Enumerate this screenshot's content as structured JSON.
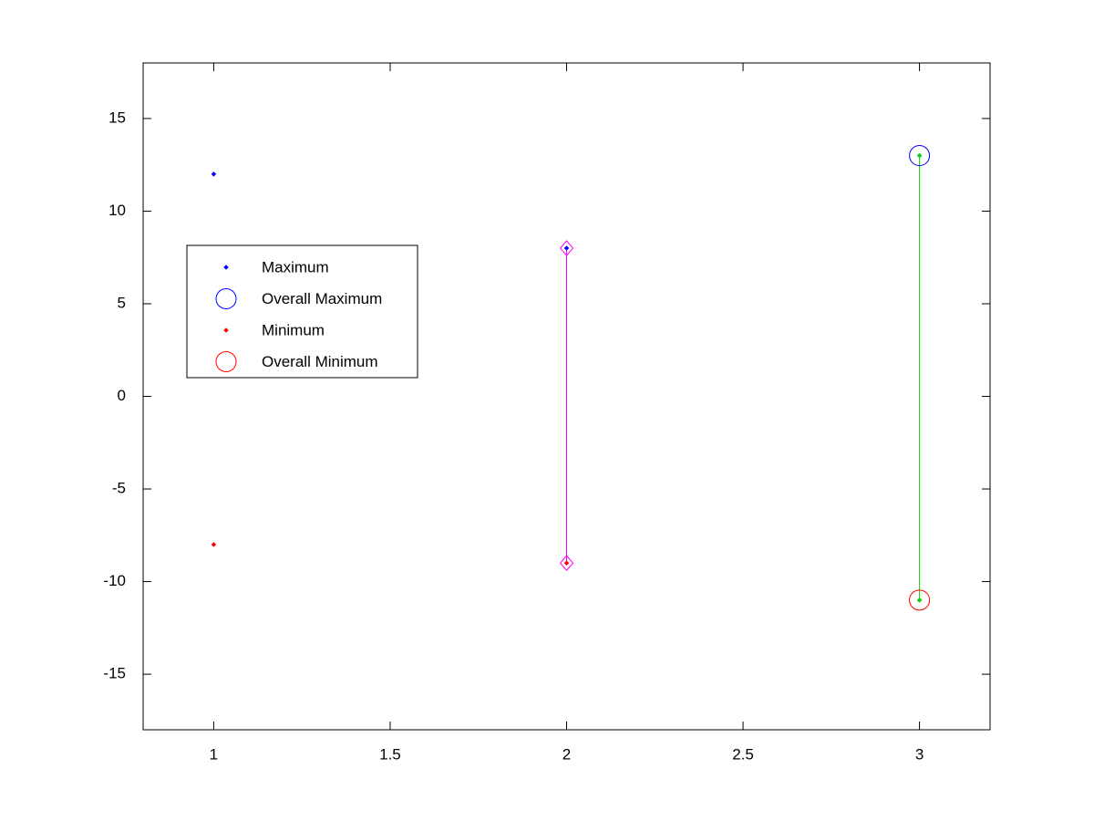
{
  "chart_data": {
    "type": "scatter",
    "xlim": [
      0.8,
      3.2
    ],
    "xticks": [
      1,
      1.5,
      2,
      2.5,
      3
    ],
    "ylim": [
      -18,
      18
    ],
    "yticks": [
      -15,
      -10,
      -5,
      0,
      5,
      10,
      15
    ],
    "legend": "west",
    "series": [
      {
        "name": "Maximum",
        "color": "#0000ff",
        "marker": "dot",
        "x": [
          1,
          2,
          3
        ],
        "values": [
          12,
          8,
          13
        ]
      },
      {
        "name": "Overall Maximum",
        "color": "#0000ff",
        "marker": "circle",
        "x": [
          3
        ],
        "values": [
          13
        ]
      },
      {
        "name": "Minimum",
        "color": "#ff0000",
        "marker": "dot",
        "x": [
          1,
          2,
          3
        ],
        "values": [
          -8,
          -9,
          -11
        ]
      },
      {
        "name": "Overall Minimum",
        "color": "#ff0000",
        "marker": "circle",
        "x": [
          3
        ],
        "values": [
          -11
        ]
      },
      {
        "color": "#ff00ff",
        "marker": "diamond",
        "line": true,
        "x": [
          2,
          2
        ],
        "values": [
          8,
          -9
        ]
      },
      {
        "color": "#00dd00",
        "marker": "dot",
        "line": true,
        "x": [
          3,
          3
        ],
        "values": [
          13,
          -11
        ]
      }
    ]
  }
}
